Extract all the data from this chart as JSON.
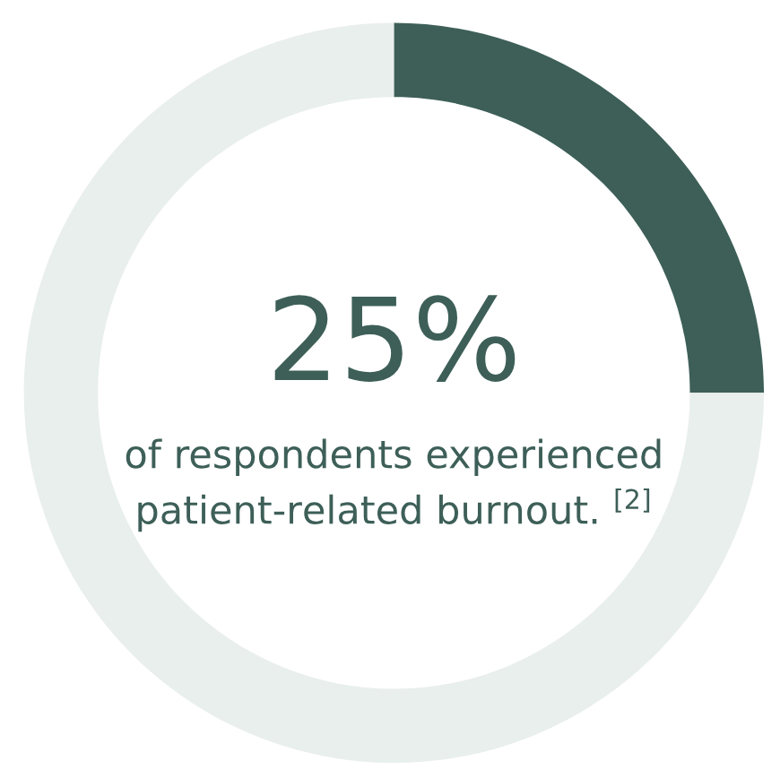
{
  "chart_data": {
    "type": "donut",
    "categories": [
      null,
      null
    ],
    "values": [
      25,
      75
    ],
    "colors": [
      "#3d5f58",
      "#e9efed"
    ],
    "annotations": [
      "25%",
      "of respondents experienced\npatient-related burnout. $^{[2]}$"
    ]
  }
}
